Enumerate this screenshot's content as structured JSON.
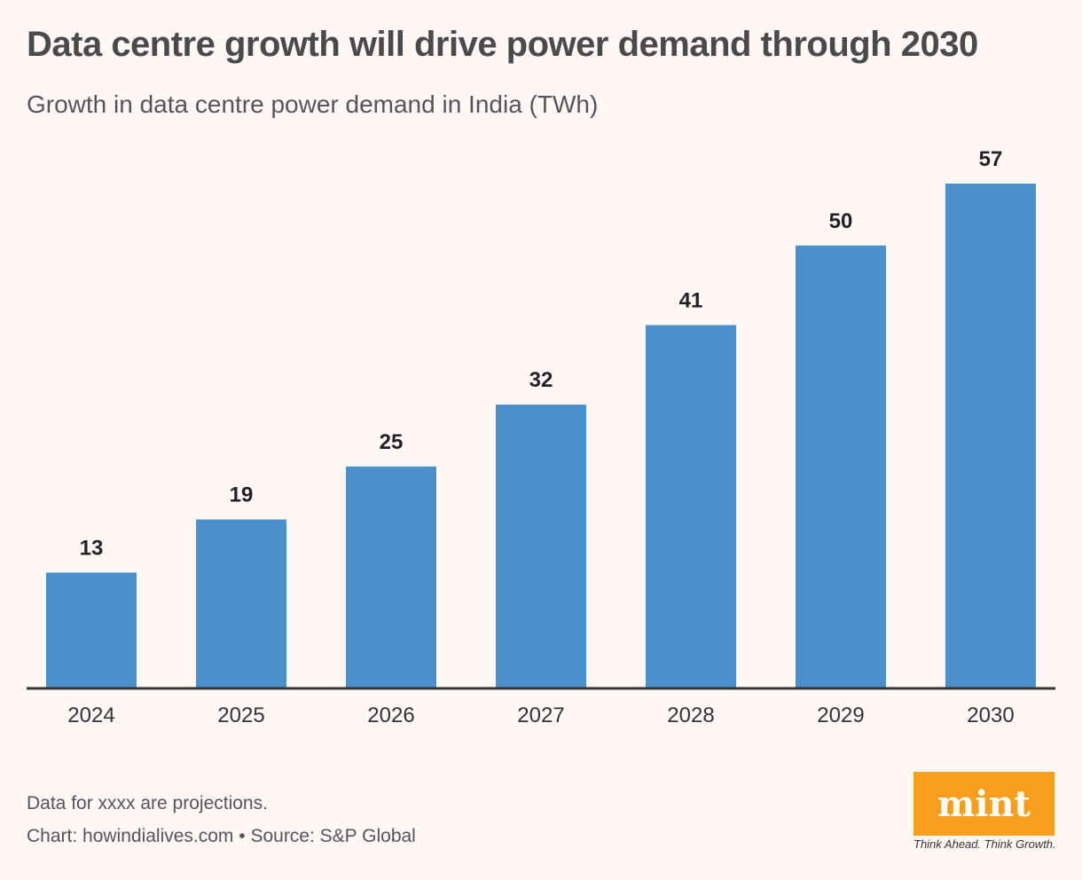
{
  "title": "Data centre growth will drive power demand through 2030",
  "subtitle": "Growth in data centre power demand in India (TWh)",
  "footer": {
    "note": "Data for xxxx are projections.",
    "credit": "Chart: howindialives.com • Source: S&P Global"
  },
  "logo": {
    "text": "mint",
    "tagline": "Think Ahead. Think Growth.",
    "color": "#f99d1c"
  },
  "chart_data": {
    "type": "bar",
    "title": "Data centre growth will drive power demand through 2030",
    "subtitle": "Growth in data centre power demand in India (TWh)",
    "categories": [
      "2024",
      "2025",
      "2026",
      "2027",
      "2028",
      "2029",
      "2030"
    ],
    "values": [
      13,
      19,
      25,
      32,
      41,
      50,
      57
    ],
    "data_labels": [
      "13",
      "19",
      "25",
      "32",
      "41",
      "50",
      "57"
    ],
    "xlabel": "",
    "ylabel": "",
    "ylim": [
      0,
      57
    ],
    "grid": false,
    "bar_color": "#4a90cc",
    "axis_color": "#333333"
  }
}
